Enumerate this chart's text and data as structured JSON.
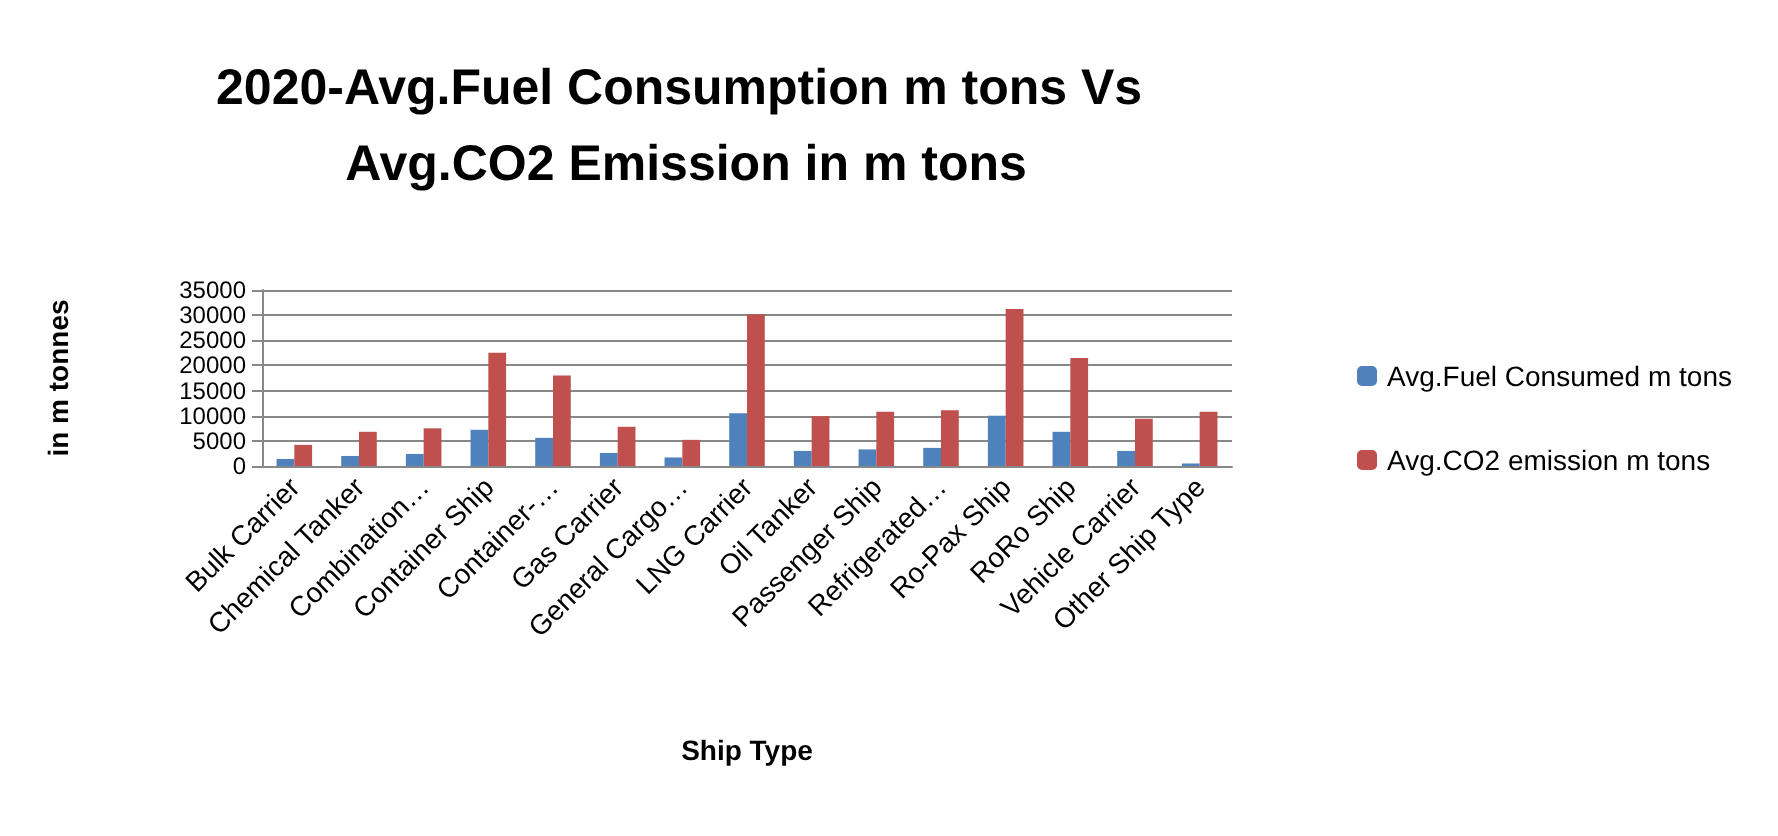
{
  "chart_data": {
    "type": "bar",
    "title": "2020-Avg.Fuel Consumption m tons Vs Avg.CO2 Emission in m tons",
    "xlabel": "Ship Type",
    "ylabel": "in m tonnes",
    "categories": [
      "Bulk Carrier",
      "Chemical Tanker",
      "Combination…",
      "Container Ship",
      "Container-…",
      "Gas Carrier",
      "General Cargo…",
      "LNG Carrier",
      "Oil Tanker",
      "Passenger Ship",
      "Refrigerated…",
      "Ro-Pax Ship",
      "RoRo Ship",
      "Vehicle Carrier",
      "Other Ship Type"
    ],
    "series": [
      {
        "name": "Avg.Fuel Consumed m tons",
        "color": "#4f81bd",
        "values": [
          1400,
          2000,
          2400,
          7200,
          5600,
          2600,
          1700,
          10500,
          3000,
          3300,
          3600,
          10000,
          6800,
          3000,
          500
        ]
      },
      {
        "name": "Avg.CO2 emission m tons",
        "color": "#c0504d",
        "values": [
          4200,
          6800,
          7500,
          22500,
          18000,
          7800,
          5200,
          30200,
          9900,
          10800,
          11100,
          31200,
          21500,
          9400,
          10800
        ]
      }
    ],
    "ylim": [
      0,
      35000
    ],
    "yticks": [
      0,
      5000,
      10000,
      15000,
      20000,
      25000,
      30000,
      35000
    ],
    "grid": "y",
    "legend": "right"
  }
}
